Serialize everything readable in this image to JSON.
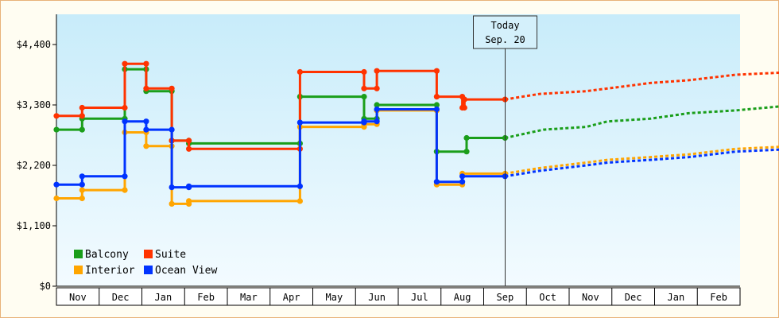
{
  "chart_data": {
    "type": "line",
    "line_style": "step",
    "ylim": [
      0,
      4950
    ],
    "y_ticks": [
      {
        "value": 0,
        "label": "$0"
      },
      {
        "value": 1100,
        "label": "$1,100"
      },
      {
        "value": 2200,
        "label": "$2,200"
      },
      {
        "value": 3300,
        "label": "$3,300"
      },
      {
        "value": 4400,
        "label": "$4,400"
      }
    ],
    "x_months": [
      "Nov",
      "Dec",
      "Jan",
      "Feb",
      "Mar",
      "Apr",
      "May",
      "Jun",
      "Jul",
      "Aug",
      "Sep",
      "Oct",
      "Nov",
      "Dec",
      "Jan",
      "Feb"
    ],
    "today_marker": {
      "line1": "Today",
      "line2": "Sep. 20",
      "x": 10.0
    },
    "legend": {
      "placement": "bottom-left"
    },
    "grid": false,
    "background": "light blue vertical gradient",
    "series": [
      {
        "name": "Balcony",
        "color": "#1a9e1a",
        "points": [
          [
            -0.5,
            2850
          ],
          [
            0.1,
            2850
          ],
          [
            0.1,
            3050
          ],
          [
            1.1,
            3050
          ],
          [
            1.1,
            3950
          ],
          [
            1.6,
            3950
          ],
          [
            1.6,
            3550
          ],
          [
            2.2,
            3550
          ],
          [
            2.2,
            2650
          ],
          [
            2.6,
            2650
          ],
          [
            2.6,
            2600
          ],
          [
            5.2,
            2600
          ],
          [
            5.2,
            3450
          ],
          [
            6.7,
            3450
          ],
          [
            6.7,
            3050
          ],
          [
            7.0,
            3050
          ],
          [
            7.0,
            3300
          ],
          [
            8.4,
            3300
          ],
          [
            8.4,
            2450
          ],
          [
            9.1,
            2450
          ],
          [
            9.1,
            2700
          ],
          [
            10.0,
            2700
          ]
        ],
        "forecast": [
          [
            10.0,
            2700
          ],
          [
            10.9,
            2850
          ],
          [
            11.9,
            2900
          ],
          [
            12.4,
            3000
          ],
          [
            13.4,
            3050
          ],
          [
            14.3,
            3150
          ],
          [
            15.4,
            3200
          ],
          [
            16.8,
            3300
          ]
        ]
      },
      {
        "name": "Suite",
        "color": "#ff3300",
        "points": [
          [
            -0.5,
            3100
          ],
          [
            0.1,
            3100
          ],
          [
            0.1,
            3250
          ],
          [
            1.1,
            3250
          ],
          [
            1.1,
            4050
          ],
          [
            1.6,
            4050
          ],
          [
            1.6,
            3600
          ],
          [
            2.2,
            3600
          ],
          [
            2.2,
            2650
          ],
          [
            2.6,
            2650
          ],
          [
            2.6,
            2500
          ],
          [
            5.2,
            2500
          ],
          [
            5.2,
            3900
          ],
          [
            6.7,
            3900
          ],
          [
            6.7,
            3600
          ],
          [
            7.0,
            3600
          ],
          [
            7.0,
            3920
          ],
          [
            8.4,
            3920
          ],
          [
            8.4,
            3450
          ],
          [
            9.0,
            3450
          ],
          [
            9.0,
            3250
          ],
          [
            9.05,
            3250
          ],
          [
            9.05,
            3400
          ],
          [
            10.0,
            3400
          ]
        ],
        "forecast": [
          [
            10.0,
            3400
          ],
          [
            10.8,
            3500
          ],
          [
            11.9,
            3550
          ],
          [
            12.4,
            3600
          ],
          [
            13.4,
            3700
          ],
          [
            14.3,
            3750
          ],
          [
            15.4,
            3850
          ],
          [
            16.8,
            3900
          ]
        ]
      },
      {
        "name": "Interior",
        "color": "#ffa500",
        "points": [
          [
            -0.5,
            1600
          ],
          [
            0.1,
            1600
          ],
          [
            0.1,
            1750
          ],
          [
            1.1,
            1750
          ],
          [
            1.1,
            2800
          ],
          [
            1.6,
            2800
          ],
          [
            1.6,
            2550
          ],
          [
            2.2,
            2550
          ],
          [
            2.2,
            1500
          ],
          [
            2.6,
            1500
          ],
          [
            2.6,
            1550
          ],
          [
            5.2,
            1550
          ],
          [
            5.2,
            2900
          ],
          [
            6.7,
            2900
          ],
          [
            6.7,
            2950
          ],
          [
            7.0,
            2950
          ],
          [
            7.0,
            3200
          ],
          [
            8.4,
            3200
          ],
          [
            8.4,
            1850
          ],
          [
            9.0,
            1850
          ],
          [
            9.0,
            2050
          ],
          [
            10.0,
            2050
          ]
        ],
        "forecast": [
          [
            10.0,
            2050
          ],
          [
            10.8,
            2150
          ],
          [
            11.9,
            2250
          ],
          [
            12.4,
            2300
          ],
          [
            13.4,
            2350
          ],
          [
            14.3,
            2400
          ],
          [
            15.4,
            2500
          ],
          [
            16.8,
            2550
          ]
        ]
      },
      {
        "name": "Ocean View",
        "color": "#0033ff",
        "points": [
          [
            -0.5,
            1850
          ],
          [
            0.1,
            1850
          ],
          [
            0.1,
            2000
          ],
          [
            1.1,
            2000
          ],
          [
            1.1,
            3000
          ],
          [
            1.6,
            3000
          ],
          [
            1.6,
            2850
          ],
          [
            2.2,
            2850
          ],
          [
            2.2,
            1800
          ],
          [
            2.6,
            1800
          ],
          [
            2.6,
            1820
          ],
          [
            5.2,
            1820
          ],
          [
            5.2,
            2980
          ],
          [
            6.7,
            2980
          ],
          [
            6.7,
            3000
          ],
          [
            7.0,
            3000
          ],
          [
            7.0,
            3220
          ],
          [
            8.4,
            3220
          ],
          [
            8.4,
            1900
          ],
          [
            9.0,
            1900
          ],
          [
            9.0,
            2000
          ],
          [
            10.0,
            2000
          ]
        ],
        "forecast": [
          [
            10.0,
            2000
          ],
          [
            10.8,
            2100
          ],
          [
            11.9,
            2200
          ],
          [
            12.4,
            2250
          ],
          [
            13.4,
            2300
          ],
          [
            14.3,
            2350
          ],
          [
            15.4,
            2450
          ],
          [
            16.8,
            2500
          ]
        ]
      }
    ]
  }
}
